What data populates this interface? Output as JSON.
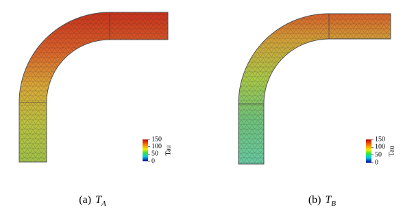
{
  "panels": [
    {
      "caption": {
        "label": "(a)",
        "symbol": "T",
        "subscript": "A"
      },
      "colorbar": {
        "title": "Tau",
        "lim": [
          0,
          150
        ],
        "ticks": [
          150,
          100,
          50,
          0
        ]
      }
    },
    {
      "caption": {
        "label": "(b)",
        "symbol": "T",
        "subscript": "B"
      },
      "colorbar": {
        "title": "Tau",
        "lim": [
          0,
          150
        ],
        "ticks": [
          150,
          100,
          50,
          0
        ]
      }
    }
  ]
}
